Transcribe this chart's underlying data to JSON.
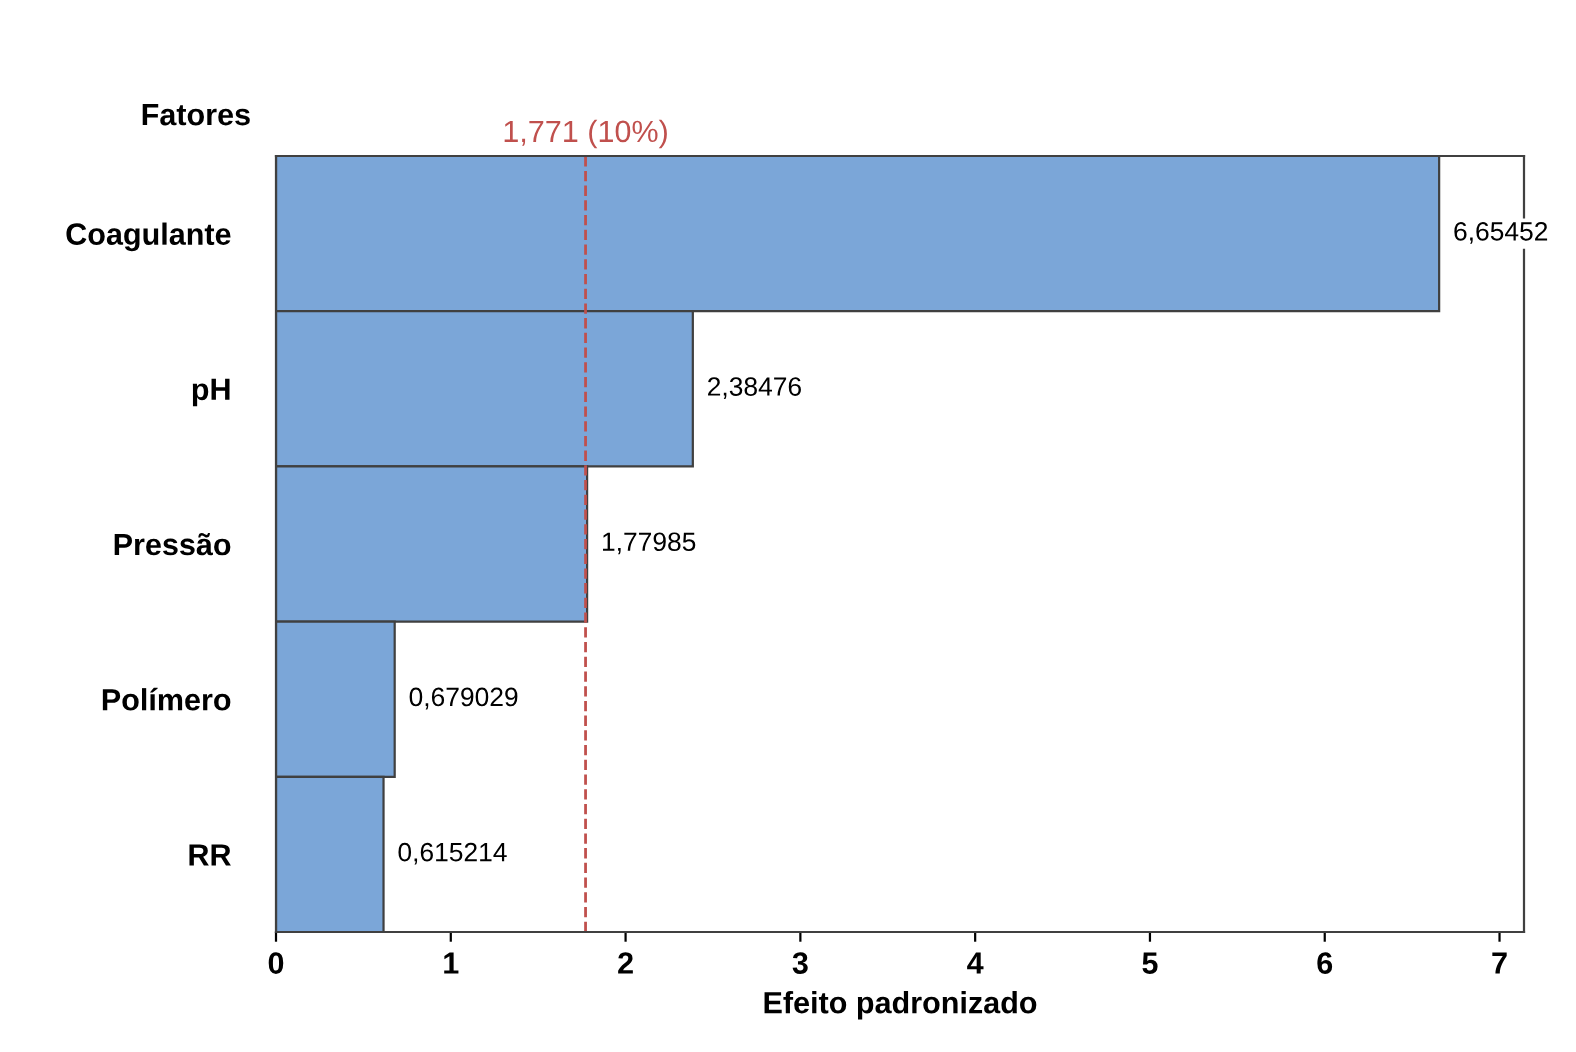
{
  "chart_data": {
    "type": "bar",
    "orientation": "horizontal",
    "ylabel": "Fatores",
    "xlabel": "Efeito padronizado",
    "categories": [
      "Coagulante",
      "pH",
      "Pressão",
      "Polímero",
      "RR"
    ],
    "values": [
      6.65452,
      2.38476,
      1.77985,
      0.679029,
      0.615214
    ],
    "value_labels": [
      "6,65452",
      "2,38476",
      "1,77985",
      "0,679029",
      "0,615214"
    ],
    "color": "#7ba6d8",
    "xlim": [
      0,
      7.14
    ],
    "xticks": [
      0,
      1,
      2,
      3,
      4,
      5,
      6,
      7
    ],
    "ref_lines": [
      {
        "axis": "x",
        "value": 1.771,
        "label": "1,771 (10%)",
        "color": "#c0504d",
        "line_style": "dashed"
      }
    ],
    "grid": false,
    "legend": false
  }
}
